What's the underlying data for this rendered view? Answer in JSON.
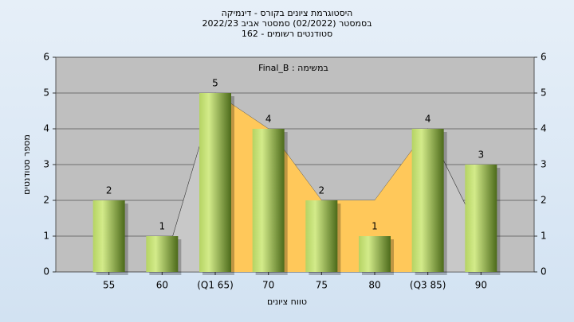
{
  "chart_data": {
    "type": "bar",
    "title": [
      "היסטוגרמת ציונים בקורס - דינמיקה",
      "בסמסטר  (02/2022)  סמסטר אביב 2022/23",
      "סטודנטים רשומים - 162"
    ],
    "legend_label": "Final_B : במשימה",
    "x_label": "טווח ציונים",
    "y_label": "מספר סטודנטים",
    "categories": [
      "55",
      "60",
      "(Q1 65)",
      "70",
      "75",
      "80",
      "(Q3 85)",
      "90"
    ],
    "values": [
      2,
      1,
      5,
      4,
      2,
      1,
      4,
      3
    ],
    "color": "#8fb33a",
    "areas": [
      {
        "color": "#c8c8c8",
        "values": [
          null,
          0,
          5,
          4,
          2,
          2,
          4,
          1
        ]
      },
      {
        "color": "#ffc85a",
        "values": [
          null,
          null,
          5,
          4,
          2,
          2,
          4,
          null
        ]
      }
    ],
    "ylim": [
      0,
      6
    ],
    "yticks": [
      0,
      1,
      2,
      3,
      4,
      5,
      6
    ],
    "y2lim": [
      0,
      6
    ],
    "y2ticks": [
      0,
      1,
      2,
      3,
      4,
      5,
      6
    ],
    "grid": true
  }
}
